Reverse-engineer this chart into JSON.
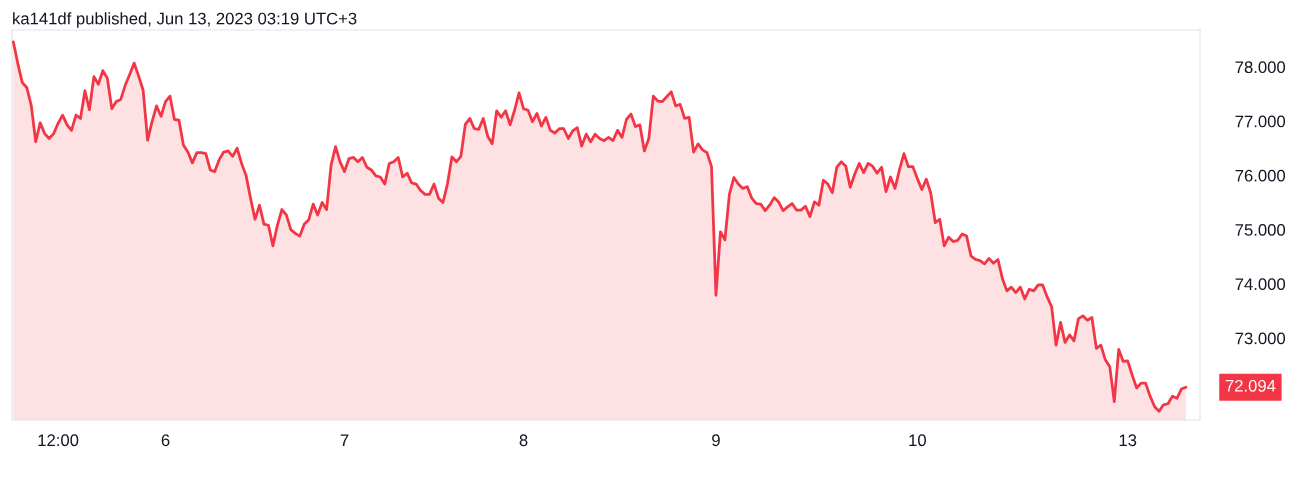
{
  "chart_data": {
    "type": "area",
    "title": "ka141df published, Jun 13, 2023 03:19 UTC+3",
    "ylim": [
      71.49,
      78.68
    ],
    "categories": [
      null,
      null,
      null,
      null,
      null,
      null,
      null,
      null,
      null,
      null,
      "12:00",
      null,
      null,
      null,
      null,
      null,
      null,
      null,
      null,
      null,
      null,
      null,
      null,
      null,
      null,
      null,
      null,
      null,
      null,
      null,
      null,
      null,
      null,
      null,
      "6",
      null,
      null,
      null,
      null,
      null,
      null,
      null,
      null,
      null,
      null,
      null,
      null,
      null,
      null,
      null,
      null,
      null,
      null,
      null,
      null,
      null,
      null,
      null,
      null,
      null,
      null,
      null,
      null,
      null,
      null,
      null,
      null,
      null,
      null,
      null,
      null,
      null,
      null,
      null,
      "7",
      null,
      null,
      null,
      null,
      null,
      null,
      null,
      null,
      null,
      null,
      null,
      null,
      null,
      null,
      null,
      null,
      null,
      null,
      null,
      null,
      null,
      null,
      null,
      null,
      null,
      null,
      null,
      null,
      null,
      null,
      null,
      null,
      null,
      null,
      null,
      null,
      null,
      null,
      null,
      "8",
      null,
      null,
      null,
      null,
      null,
      null,
      null,
      null,
      null,
      null,
      null,
      null,
      null,
      null,
      null,
      null,
      null,
      null,
      null,
      null,
      null,
      null,
      null,
      null,
      null,
      null,
      null,
      null,
      null,
      null,
      null,
      null,
      null,
      null,
      null,
      null,
      null,
      null,
      null,
      null,
      null,
      null,
      "9",
      null,
      null,
      null,
      null,
      null,
      null,
      null,
      null,
      null,
      null,
      null,
      null,
      null,
      null,
      null,
      null,
      null,
      null,
      null,
      null,
      null,
      null,
      null,
      null,
      null,
      null,
      null,
      null,
      null,
      null,
      null,
      null,
      null,
      null,
      null,
      null,
      null,
      null,
      null,
      null,
      null,
      null,
      null,
      null,
      "10",
      null,
      null,
      null,
      null,
      null,
      null,
      null,
      null,
      null,
      null,
      null,
      null,
      null,
      null,
      null,
      null,
      null,
      null,
      null,
      null,
      null,
      null,
      null,
      null,
      null,
      null,
      null,
      null,
      null,
      null,
      null,
      null,
      null,
      null,
      null,
      null,
      null,
      null,
      null,
      null,
      null,
      null,
      null,
      null,
      null,
      null,
      "13",
      null,
      null,
      null,
      null,
      null,
      null,
      null,
      null,
      null,
      null,
      null,
      null,
      null
    ],
    "yticks": [
      {
        "value": 73,
        "label": "73.000"
      },
      {
        "value": 74,
        "label": "74.000"
      },
      {
        "value": 75,
        "label": "75.000"
      },
      {
        "value": 76,
        "label": "76.000"
      },
      {
        "value": 77,
        "label": "77.000"
      },
      {
        "value": 78,
        "label": "78.000"
      }
    ],
    "grid": false,
    "legend": false,
    "annotations": [
      "72.094"
    ],
    "series": [
      {
        "color": "#f23645",
        "values": [
          78.46,
          78.06,
          77.71,
          77.62,
          77.29,
          76.62,
          76.97,
          76.77,
          76.68,
          76.77,
          76.96,
          77.11,
          76.93,
          76.83,
          77.11,
          77.05,
          77.56,
          77.21,
          77.82,
          77.68,
          77.93,
          77.79,
          77.23,
          77.36,
          77.4,
          77.66,
          77.86,
          78.07,
          77.83,
          77.57,
          76.65,
          76.99,
          77.28,
          77.09,
          77.36,
          77.46,
          77.03,
          77.02,
          76.56,
          76.43,
          76.23,
          76.42,
          76.42,
          76.4,
          76.1,
          76.07,
          76.29,
          76.43,
          76.45,
          76.35,
          76.5,
          76.22,
          76.0,
          75.58,
          75.19,
          75.45,
          75.1,
          75.08,
          74.7,
          75.08,
          75.37,
          75.27,
          75.0,
          74.93,
          74.88,
          75.1,
          75.18,
          75.47,
          75.27,
          75.5,
          75.37,
          76.19,
          76.53,
          76.25,
          76.07,
          76.31,
          76.33,
          76.25,
          76.33,
          76.15,
          76.1,
          75.99,
          75.97,
          75.84,
          76.22,
          76.25,
          76.33,
          75.97,
          76.04,
          75.86,
          75.84,
          75.72,
          75.65,
          75.65,
          75.84,
          75.58,
          75.5,
          75.84,
          76.34,
          76.25,
          76.35,
          76.94,
          77.05,
          76.86,
          76.85,
          77.05,
          76.72,
          76.58,
          77.19,
          77.07,
          77.19,
          76.93,
          77.2,
          77.52,
          77.23,
          77.2,
          76.99,
          77.14,
          76.91,
          77.07,
          76.83,
          76.78,
          76.86,
          76.86,
          76.68,
          76.82,
          76.88,
          76.54,
          76.76,
          76.62,
          76.76,
          76.68,
          76.64,
          76.7,
          76.64,
          76.83,
          76.7,
          77.03,
          77.13,
          76.9,
          76.93,
          76.45,
          76.68,
          77.46,
          77.37,
          77.36,
          77.45,
          77.54,
          77.28,
          77.31,
          77.05,
          77.07,
          76.43,
          76.58,
          76.47,
          76.42,
          76.16,
          73.79,
          74.96,
          74.81,
          75.65,
          75.96,
          75.84,
          75.76,
          75.79,
          75.58,
          75.48,
          75.47,
          75.35,
          75.45,
          75.59,
          75.51,
          75.35,
          75.42,
          75.48,
          75.36,
          75.36,
          75.43,
          75.24,
          75.51,
          75.45,
          75.91,
          75.84,
          75.68,
          76.15,
          76.25,
          76.17,
          75.78,
          76.02,
          76.22,
          76.05,
          76.22,
          76.17,
          76.04,
          76.15,
          75.7,
          75.97,
          75.76,
          76.1,
          76.4,
          76.16,
          76.16,
          75.94,
          75.74,
          75.93,
          75.67,
          75.13,
          75.19,
          74.7,
          74.86,
          74.78,
          74.8,
          74.92,
          74.88,
          74.51,
          74.45,
          74.43,
          74.37,
          74.47,
          74.38,
          74.45,
          74.1,
          73.87,
          73.94,
          73.84,
          73.94,
          73.72,
          73.9,
          73.87,
          73.98,
          73.98,
          73.76,
          73.58,
          72.87,
          73.29,
          72.92,
          73.06,
          72.95,
          73.36,
          73.41,
          73.33,
          73.38,
          72.81,
          72.87,
          72.6,
          72.47,
          71.83,
          72.79,
          72.57,
          72.58,
          72.32,
          72.08,
          72.17,
          72.17,
          71.93,
          71.74,
          71.65,
          71.77,
          71.79,
          71.93,
          71.89,
          72.06,
          72.094
        ]
      }
    ]
  }
}
